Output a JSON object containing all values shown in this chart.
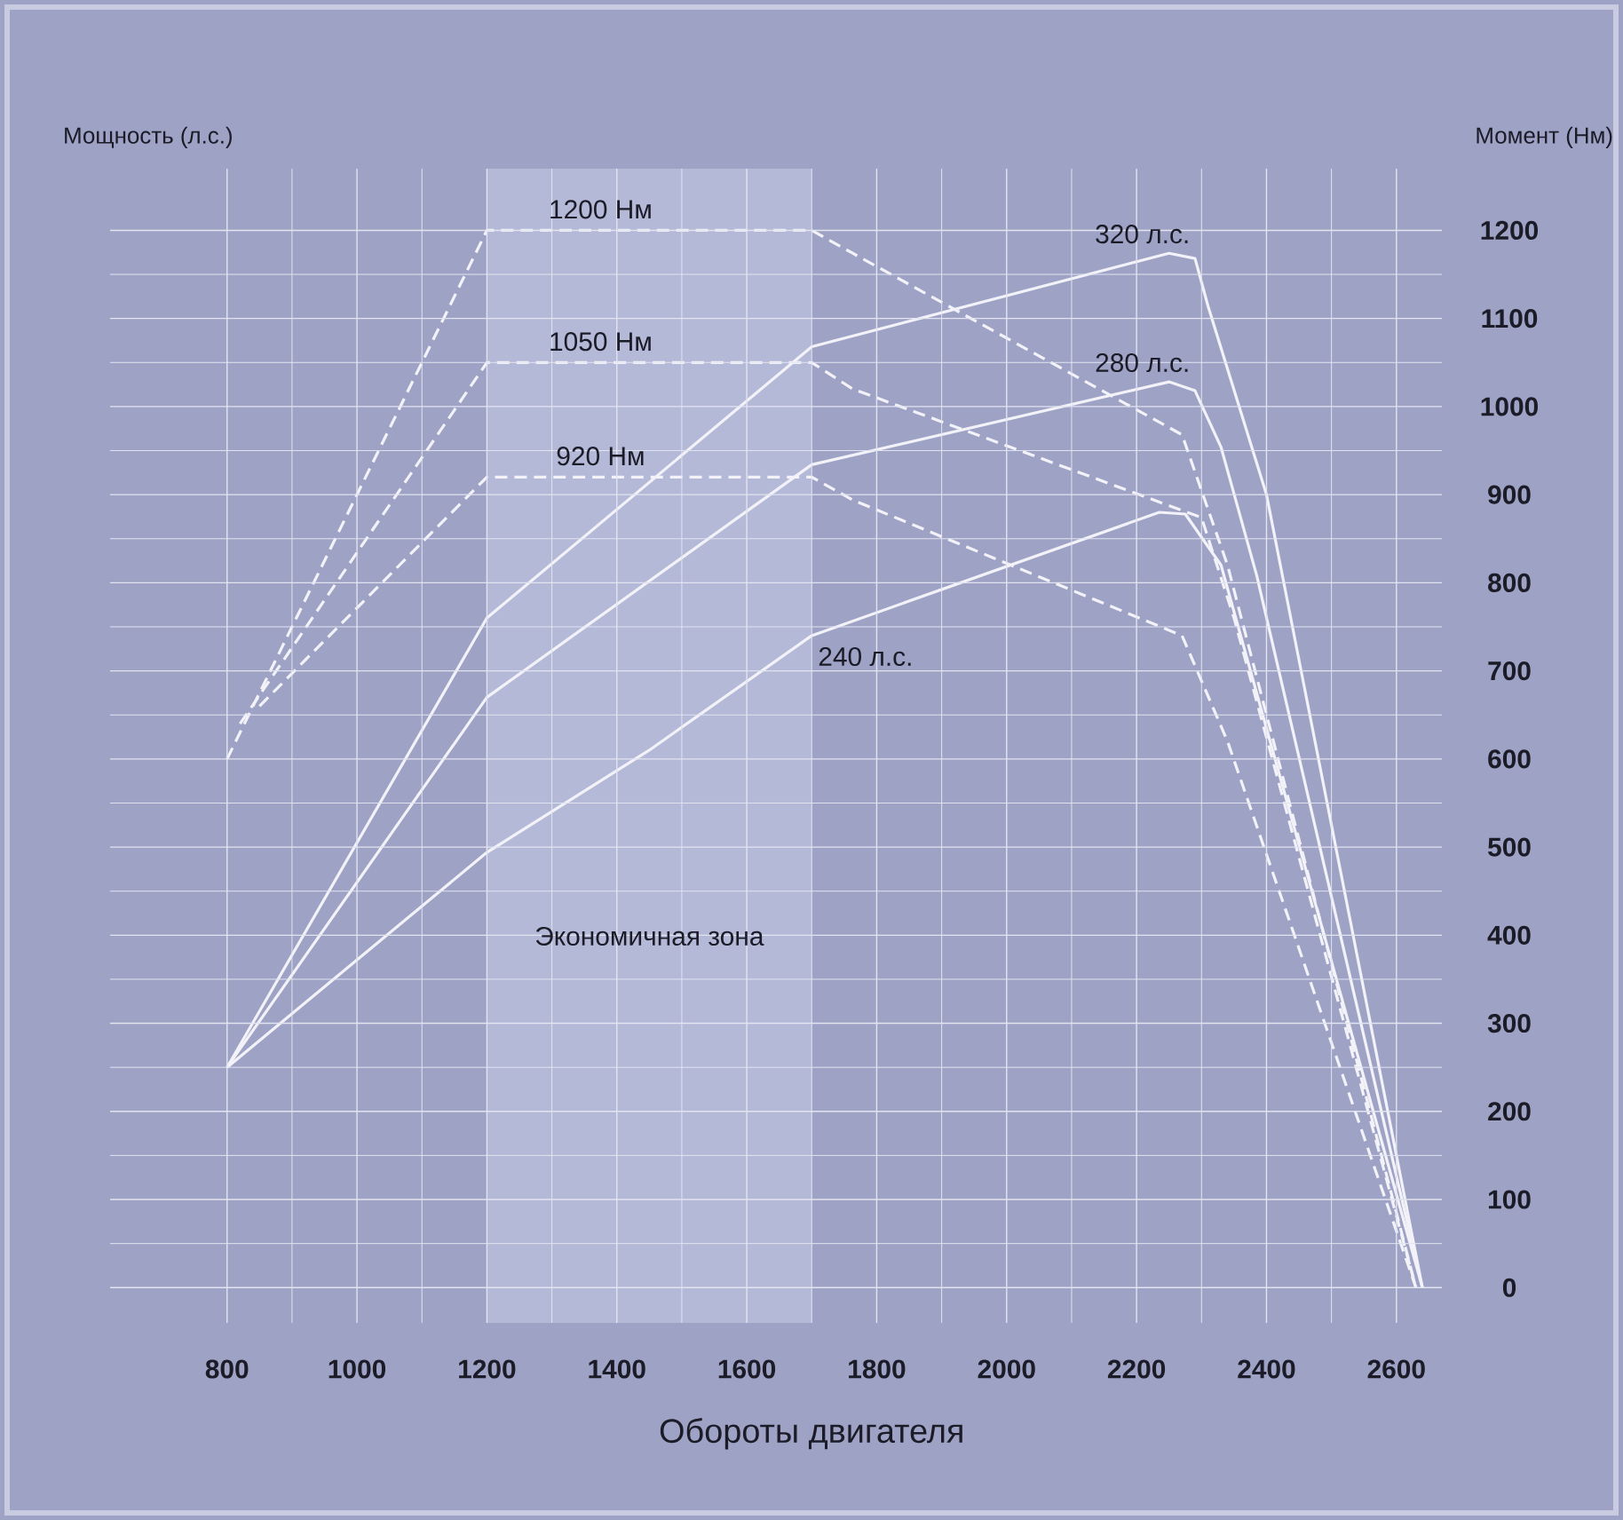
{
  "chart_data": {
    "type": "line",
    "xlabel": "Обороты двигателя",
    "ylabel": "Мощность (л.с.)",
    "y2label": "Момент (Нм)",
    "xlim": [
      620,
      2670
    ],
    "xticks": [
      800,
      1000,
      1200,
      1400,
      1600,
      1800,
      2000,
      2200,
      2400,
      2600
    ],
    "y2lim": [
      -40,
      1270
    ],
    "y2ticks": [
      0,
      100,
      200,
      300,
      400,
      500,
      600,
      700,
      800,
      900,
      1000,
      1100,
      1200
    ],
    "grid": true,
    "marker": "none",
    "bands": [
      {
        "axis": "x",
        "from": 1200,
        "to": 1700,
        "label": "Экономичная зона",
        "color": "#b4b9d8"
      }
    ],
    "series": [
      {
        "name": "1200 Нм",
        "axis": "y2",
        "line_style": "dashed",
        "color": "#f2f2f8",
        "x": [
          800,
          1200,
          1700,
          1763,
          2270,
          2340,
          2630
        ],
        "values": [
          600,
          1200,
          1200,
          1174,
          968,
          820,
          0
        ]
      },
      {
        "name": "1050 Нм",
        "axis": "y2",
        "line_style": "dashed",
        "color": "#f2f2f8",
        "x": [
          820,
          1200,
          1700,
          1763,
          2300,
          2350,
          2630
        ],
        "values": [
          640,
          1050,
          1050,
          1020,
          874,
          760,
          0
        ]
      },
      {
        "name": "920 Нм",
        "axis": "y2",
        "line_style": "dashed",
        "color": "#f2f2f8",
        "x": [
          850,
          1200,
          1700,
          1763,
          2270,
          2340,
          2630
        ],
        "values": [
          660,
          920,
          920,
          894,
          740,
          620,
          0
        ]
      },
      {
        "name": "320 л.с.",
        "axis": "y2",
        "line_style": "solid",
        "color": "#f2f2f8",
        "x": [
          800,
          1200,
          1700,
          2250,
          2290,
          2310,
          2400,
          2640
        ],
        "values": [
          250,
          760,
          1068,
          1174,
          1168,
          1114,
          900,
          0
        ]
      },
      {
        "name": "280 л.с.",
        "axis": "y2",
        "line_style": "solid",
        "color": "#f2f2f8",
        "x": [
          800,
          1200,
          1700,
          2250,
          2290,
          2330,
          2385,
          2640
        ],
        "values": [
          250,
          670,
          934,
          1028,
          1018,
          954,
          808,
          0
        ]
      },
      {
        "name": "240 л.с.",
        "axis": "y2",
        "line_style": "solid",
        "color": "#f2f2f8",
        "x": [
          800,
          1200,
          1450,
          1700,
          2235,
          2275,
          2330,
          2640
        ],
        "values": [
          250,
          494,
          610,
          740,
          880,
          878,
          820,
          0
        ]
      }
    ]
  }
}
